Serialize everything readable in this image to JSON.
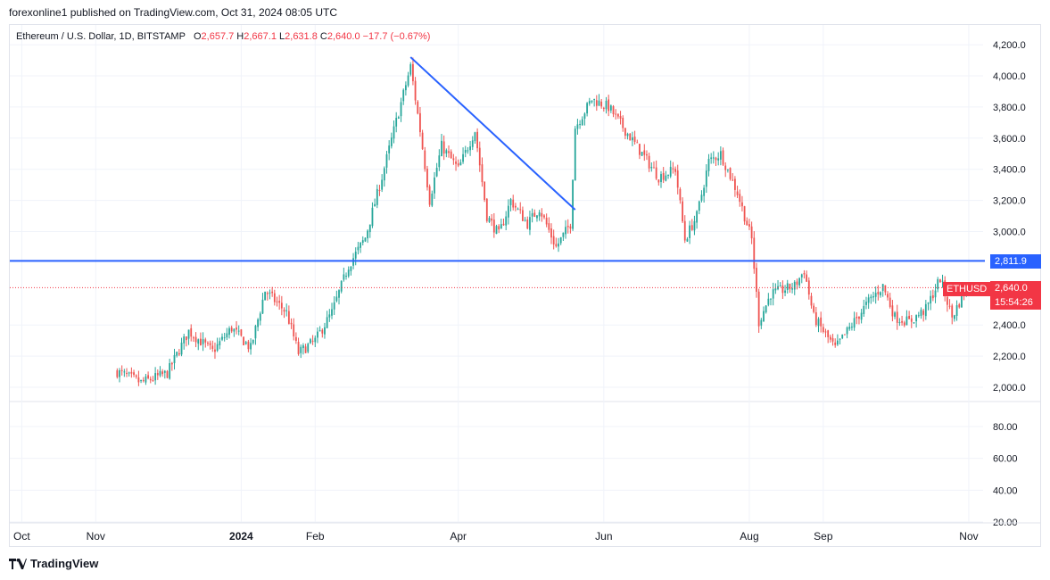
{
  "publisher_line": "forexonline1 published on TradingView.com, Oct 31, 2024 08:05 UTC",
  "legend": {
    "symbol": "Ethereum / U.S. Dollar, 1D, BITSTAMP",
    "o_label": "O",
    "o_value": "2,657.7",
    "h_label": "H",
    "h_value": "2,667.1",
    "l_label": "L",
    "l_value": "2,631.8",
    "c_label": "C",
    "c_value": "2,640.0",
    "change": "−17.7 (−0.67%)"
  },
  "price_axis_labels": [
    "4,200.0",
    "4,000.0",
    "3,800.0",
    "3,600.0",
    "3,400.0",
    "3,200.0",
    "3,000.0",
    "2,400.0",
    "2,200.0",
    "2,000.0"
  ],
  "volume_axis_labels": [
    "80.00",
    "60.00",
    "40.00",
    "20.00"
  ],
  "time_axis_labels": [
    "Oct",
    "Nov",
    "2024",
    "Feb",
    "Apr",
    "Jun",
    "Aug",
    "Sep",
    "Nov"
  ],
  "horizontal_level_tag": "2,811.9",
  "current_price": {
    "symbol_tag": "ETHUSD",
    "price": "2,640.0",
    "countdown": "15:54:26"
  },
  "footer_brand": "TradingView",
  "colors": {
    "up": "#26a69a",
    "down": "#ef5350",
    "line": "#2962ff",
    "tag_red": "#f23645",
    "grid": "#f0f3fa"
  },
  "chart_data": {
    "type": "candlestick",
    "symbol": "Ethereum / U.S. Dollar",
    "timeframe": "1D",
    "exchange": "BITSTAMP",
    "price_range": [
      1900,
      4250
    ],
    "last_ohlc": {
      "open": 2657.7,
      "high": 2667.1,
      "low": 2631.8,
      "close": 2640.0
    },
    "horizontal_line": 2811.9,
    "trendline": {
      "from": [
        "2024-03-12",
        4120
      ],
      "to": [
        "2024-05-20",
        3140
      ]
    },
    "price_path": [
      [
        "2023-11-10",
        2100
      ],
      [
        "2023-11-20",
        2030
      ],
      [
        "2023-12-01",
        2090
      ],
      [
        "2023-12-10",
        2360
      ],
      [
        "2023-12-20",
        2230
      ],
      [
        "2023-12-28",
        2380
      ],
      [
        "2024-01-05",
        2250
      ],
      [
        "2024-01-11",
        2620
      ],
      [
        "2024-01-20",
        2480
      ],
      [
        "2024-01-25",
        2220
      ],
      [
        "2024-02-01",
        2300
      ],
      [
        "2024-02-08",
        2480
      ],
      [
        "2024-02-15",
        2780
      ],
      [
        "2024-02-22",
        2960
      ],
      [
        "2024-02-29",
        3350
      ],
      [
        "2024-03-05",
        3650
      ],
      [
        "2024-03-12",
        4060
      ],
      [
        "2024-03-16",
        3650
      ],
      [
        "2024-03-20",
        3200
      ],
      [
        "2024-03-25",
        3550
      ],
      [
        "2024-04-01",
        3400
      ],
      [
        "2024-04-08",
        3650
      ],
      [
        "2024-04-13",
        3100
      ],
      [
        "2024-04-18",
        2980
      ],
      [
        "2024-04-23",
        3200
      ],
      [
        "2024-04-30",
        3050
      ],
      [
        "2024-05-05",
        3150
      ],
      [
        "2024-05-12",
        2900
      ],
      [
        "2024-05-18",
        3050
      ],
      [
        "2024-05-20",
        3670
      ],
      [
        "2024-05-27",
        3850
      ],
      [
        "2024-06-03",
        3800
      ],
      [
        "2024-06-10",
        3650
      ],
      [
        "2024-06-17",
        3500
      ],
      [
        "2024-06-24",
        3350
      ],
      [
        "2024-07-01",
        3400
      ],
      [
        "2024-07-05",
        2950
      ],
      [
        "2024-07-10",
        3100
      ],
      [
        "2024-07-15",
        3450
      ],
      [
        "2024-07-20",
        3500
      ],
      [
        "2024-07-27",
        3250
      ],
      [
        "2024-08-02",
        2950
      ],
      [
        "2024-08-05",
        2420
      ],
      [
        "2024-08-10",
        2600
      ],
      [
        "2024-08-20",
        2650
      ],
      [
        "2024-08-24",
        2750
      ],
      [
        "2024-08-28",
        2450
      ],
      [
        "2024-09-06",
        2250
      ],
      [
        "2024-09-12",
        2380
      ],
      [
        "2024-09-20",
        2550
      ],
      [
        "2024-09-26",
        2650
      ],
      [
        "2024-10-01",
        2450
      ],
      [
        "2024-10-07",
        2420
      ],
      [
        "2024-10-14",
        2500
      ],
      [
        "2024-10-20",
        2700
      ],
      [
        "2024-10-25",
        2450
      ],
      [
        "2024-10-31",
        2640
      ]
    ]
  }
}
